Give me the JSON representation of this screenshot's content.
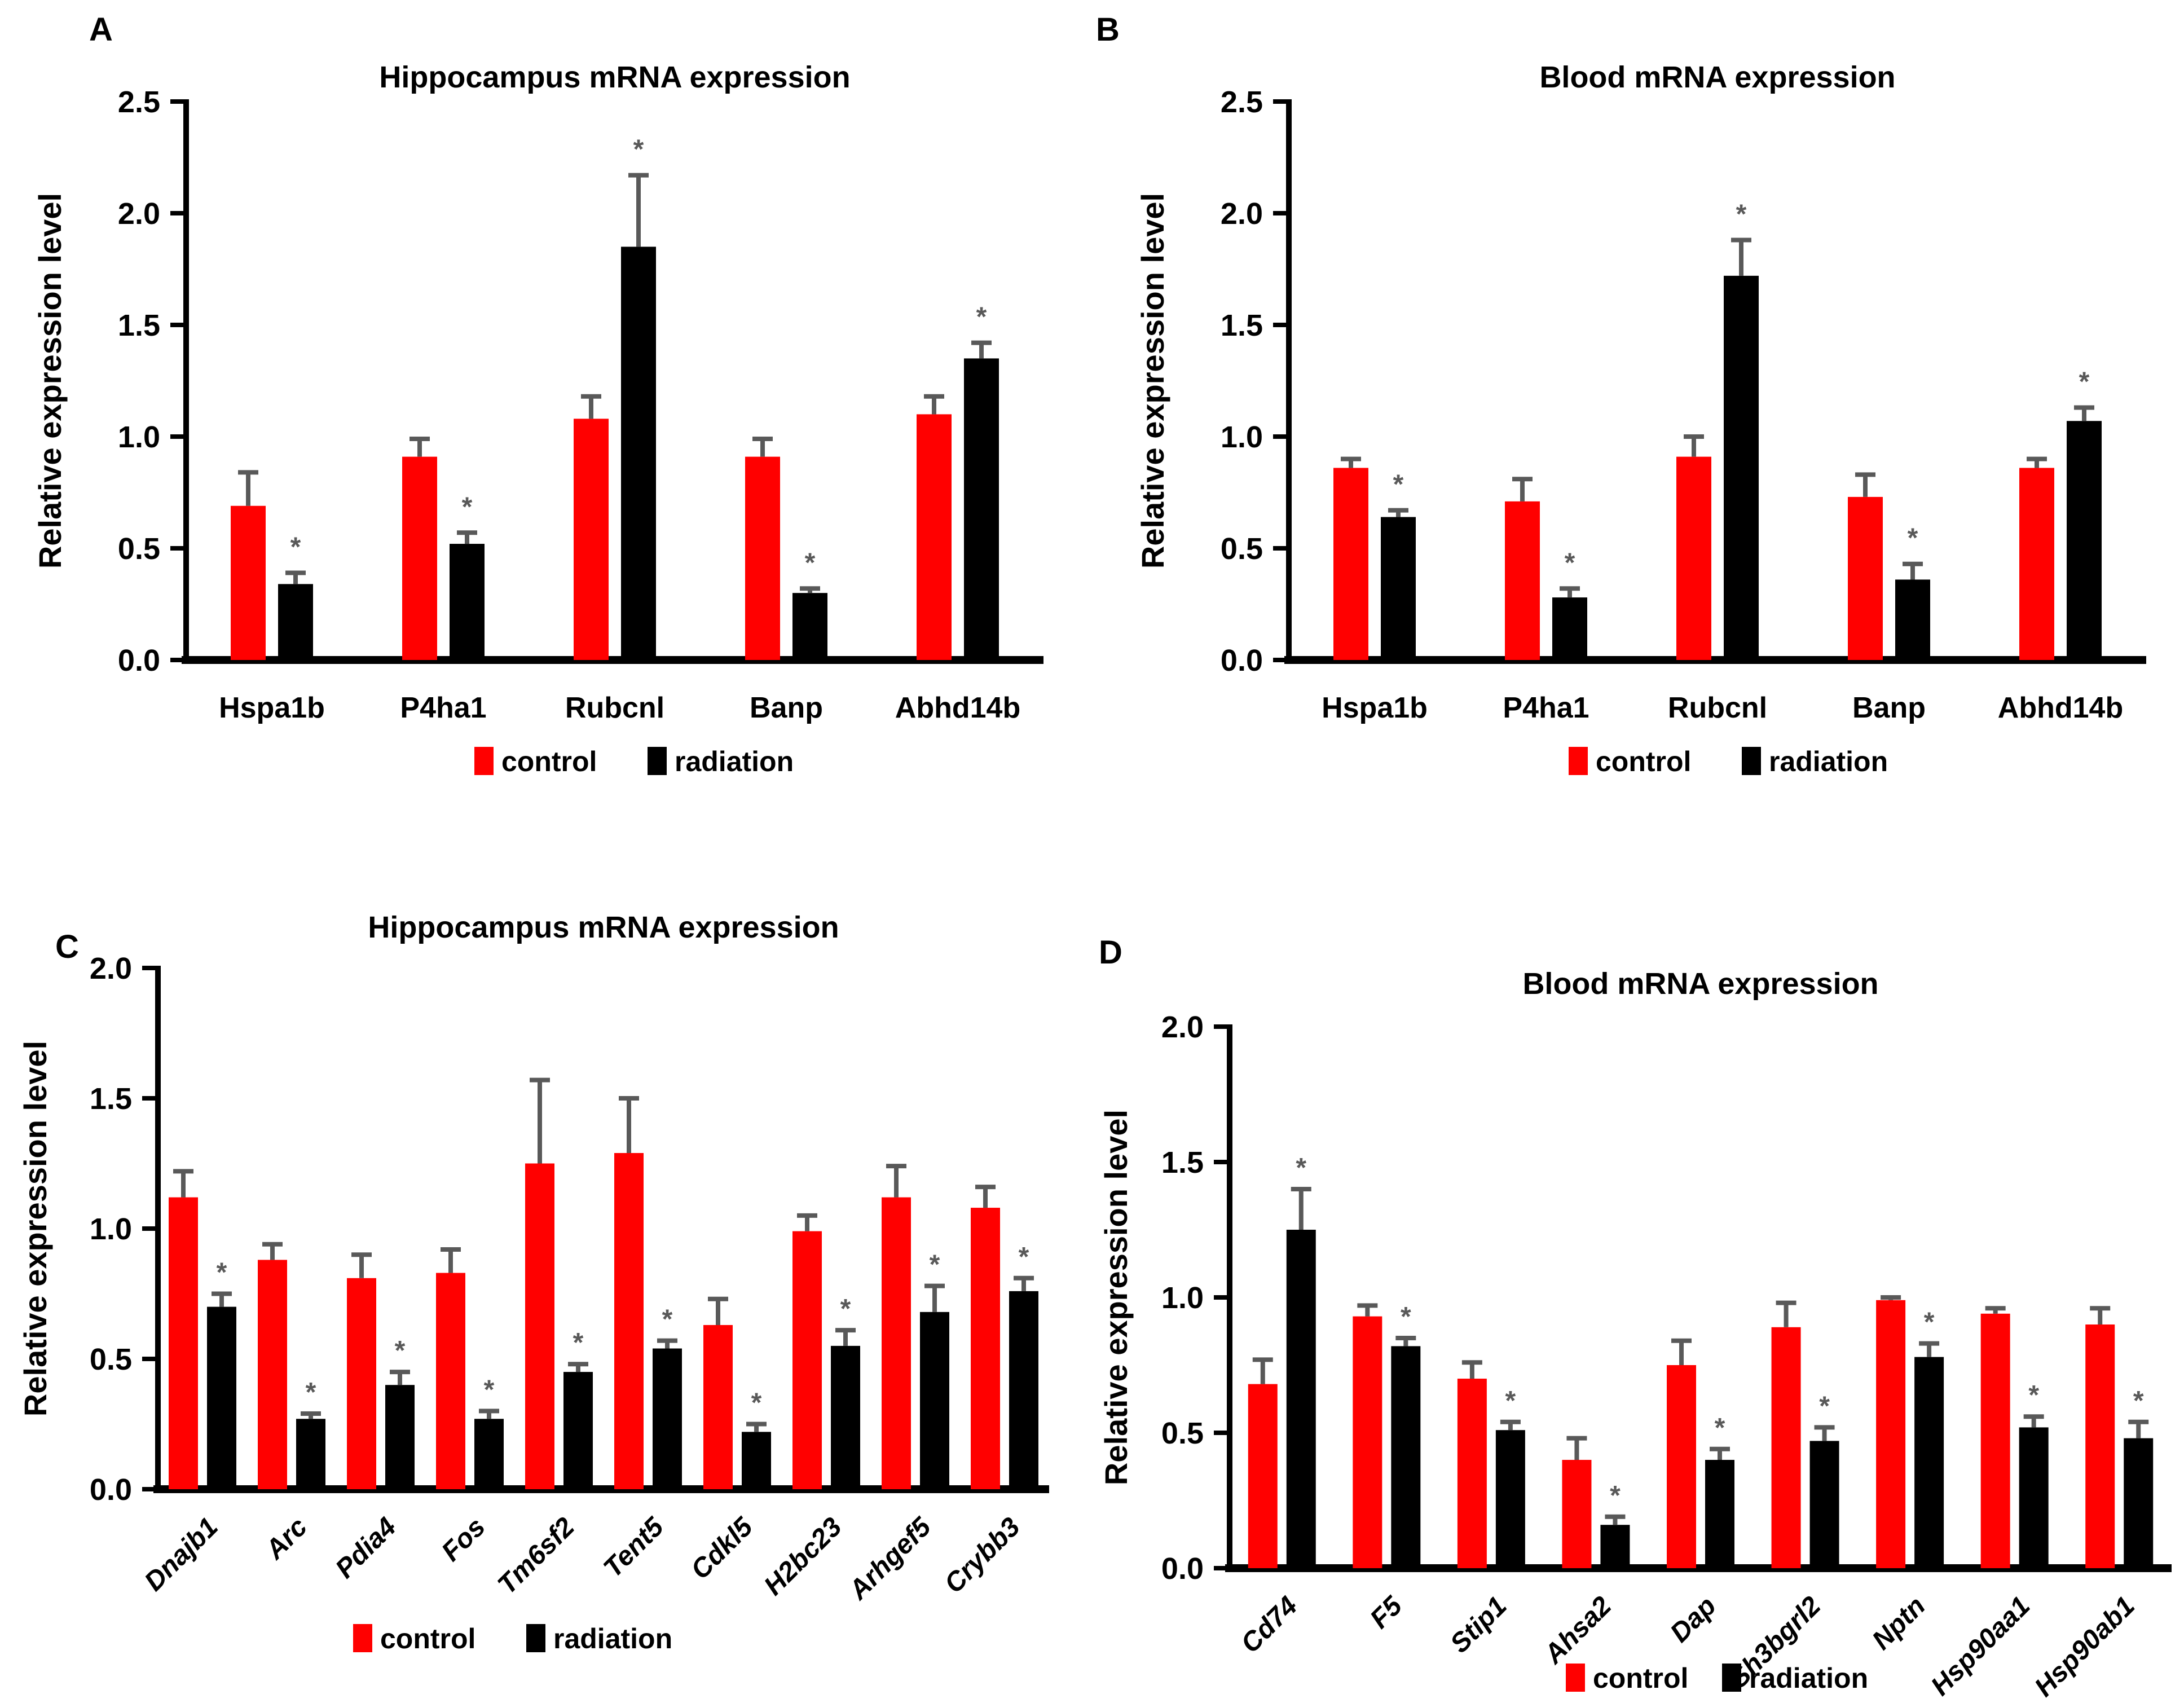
{
  "figure": {
    "background": "#ffffff",
    "significance_marker": "*",
    "colors": {
      "control": "#FF0000",
      "radiation": "#000000",
      "error_bar": "#595959",
      "asterisk": "#595959",
      "axis": "#000000",
      "text": "#000000"
    }
  },
  "chart_data": [
    {
      "type": "bar",
      "panel_label": "A",
      "title": "Hippocampus mRNA expression",
      "y_axis_label": "Relative expression level",
      "ylim": [
        0,
        2.5
      ],
      "yticks": [
        "0.0",
        "0.5",
        "1.0",
        "1.5",
        "2.0",
        "2.5"
      ],
      "grid": "off",
      "legend_position": "bottom-center",
      "legend": [
        {
          "name": "control",
          "color": "#FF0000"
        },
        {
          "name": "radiation",
          "color": "#000000"
        }
      ],
      "categories": [
        "Hspa1b",
        "P4ha1",
        "Rubcnl",
        "Banp",
        "Abhd14b"
      ],
      "series": [
        {
          "name": "control",
          "color": "#FF0000",
          "values": [
            0.69,
            0.91,
            1.08,
            0.91,
            1.1
          ],
          "errors": [
            0.15,
            0.08,
            0.1,
            0.08,
            0.08
          ],
          "significant": [
            false,
            false,
            false,
            false,
            false
          ]
        },
        {
          "name": "radiation",
          "color": "#000000",
          "values": [
            0.34,
            0.52,
            1.85,
            0.3,
            1.35
          ],
          "errors": [
            0.05,
            0.05,
            0.32,
            0.02,
            0.07
          ],
          "significant": [
            true,
            true,
            true,
            true,
            true
          ]
        }
      ]
    },
    {
      "type": "bar",
      "panel_label": "B",
      "title": "Blood mRNA expression",
      "y_axis_label": "Relative expression level",
      "ylim": [
        0,
        2.5
      ],
      "yticks": [
        "0.0",
        "0.5",
        "1.0",
        "1.5",
        "2.0",
        "2.5"
      ],
      "grid": "off",
      "legend_position": "bottom-center",
      "legend": [
        {
          "name": "control",
          "color": "#FF0000"
        },
        {
          "name": "radiation",
          "color": "#000000"
        }
      ],
      "categories": [
        "Hspa1b",
        "P4ha1",
        "Rubcnl",
        "Banp",
        "Abhd14b"
      ],
      "series": [
        {
          "name": "control",
          "color": "#FF0000",
          "values": [
            0.86,
            0.71,
            0.91,
            0.73,
            0.86
          ],
          "errors": [
            0.04,
            0.1,
            0.09,
            0.1,
            0.04
          ],
          "significant": [
            false,
            false,
            false,
            false,
            false
          ]
        },
        {
          "name": "radiation",
          "color": "#000000",
          "values": [
            0.64,
            0.28,
            1.72,
            0.36,
            1.07
          ],
          "errors": [
            0.03,
            0.04,
            0.16,
            0.07,
            0.06
          ],
          "significant": [
            true,
            true,
            true,
            true,
            true
          ]
        }
      ]
    },
    {
      "type": "bar",
      "panel_label": "C",
      "title": "Hippocampus mRNA expression",
      "y_axis_label": "Relative expression level",
      "ylim": [
        0,
        2.0
      ],
      "yticks": [
        "0.0",
        "0.5",
        "1.0",
        "1.5",
        "2.0"
      ],
      "grid": "off",
      "legend_position": "bottom-center",
      "legend": [
        {
          "name": "control",
          "color": "#FF0000"
        },
        {
          "name": "radiation",
          "color": "#000000"
        }
      ],
      "categories": [
        "Dnajb1",
        "Arc",
        "Pdia4",
        "Fos",
        "Tm6sf2",
        "Tent5",
        "Cdkl5",
        "H2bc23",
        "Arhgef5",
        "Crybb3"
      ],
      "series": [
        {
          "name": "control",
          "color": "#FF0000",
          "values": [
            1.12,
            0.88,
            0.81,
            0.83,
            1.25,
            1.29,
            0.63,
            0.99,
            1.12,
            1.08
          ],
          "errors": [
            0.1,
            0.06,
            0.09,
            0.09,
            0.32,
            0.21,
            0.1,
            0.06,
            0.12,
            0.08
          ],
          "significant": [
            false,
            false,
            false,
            false,
            false,
            false,
            false,
            false,
            false,
            false
          ]
        },
        {
          "name": "radiation",
          "color": "#000000",
          "values": [
            0.7,
            0.27,
            0.4,
            0.27,
            0.45,
            0.54,
            0.22,
            0.55,
            0.68,
            0.76
          ],
          "errors": [
            0.05,
            0.02,
            0.05,
            0.03,
            0.03,
            0.03,
            0.03,
            0.06,
            0.1,
            0.05
          ],
          "significant": [
            true,
            true,
            true,
            true,
            true,
            true,
            true,
            true,
            true,
            true
          ]
        }
      ]
    },
    {
      "type": "bar",
      "panel_label": "D",
      "title": "Blood mRNA expression",
      "y_axis_label": "Relative expression level",
      "ylim": [
        0,
        2.0
      ],
      "yticks": [
        "0.0",
        "0.5",
        "1.0",
        "1.5",
        "2.0"
      ],
      "grid": "off",
      "legend_position": "bottom-center",
      "legend": [
        {
          "name": "control",
          "color": "#FF0000"
        },
        {
          "name": "radiation",
          "color": "#000000"
        }
      ],
      "categories": [
        "Cd74",
        "F5",
        "Stip1",
        "Ahsa2",
        "Dap",
        "Sh3bgrl2",
        "Nptn",
        "Hsp90aa1",
        "Hsp90ab1"
      ],
      "series": [
        {
          "name": "control",
          "color": "#FF0000",
          "values": [
            0.68,
            0.93,
            0.7,
            0.4,
            0.75,
            0.89,
            0.99,
            0.94,
            0.9
          ],
          "errors": [
            0.09,
            0.04,
            0.06,
            0.08,
            0.09,
            0.09,
            0.01,
            0.02,
            0.06
          ],
          "significant": [
            false,
            false,
            false,
            false,
            false,
            false,
            false,
            false,
            false
          ]
        },
        {
          "name": "radiation",
          "color": "#000000",
          "values": [
            1.25,
            0.82,
            0.51,
            0.16,
            0.4,
            0.47,
            0.78,
            0.52,
            0.48
          ],
          "errors": [
            0.15,
            0.03,
            0.03,
            0.03,
            0.04,
            0.05,
            0.05,
            0.04,
            0.06
          ],
          "significant": [
            true,
            true,
            true,
            true,
            true,
            true,
            true,
            true,
            true
          ]
        }
      ]
    }
  ]
}
